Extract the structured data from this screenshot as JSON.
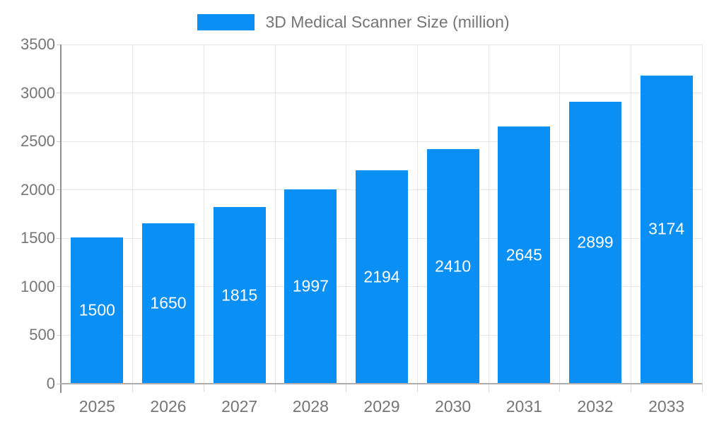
{
  "legend": {
    "label": "3D Medical Scanner Size (million)"
  },
  "colors": {
    "bar": "#0a8ff5",
    "grid": "#e6e6e6",
    "y_axis": "#909090",
    "x_axis": "#aeaeae",
    "axis_text": "#757575",
    "bar_label": "#ffffff",
    "background": "#ffffff"
  },
  "chart_data": {
    "type": "bar",
    "title": "3D Medical Scanner Size (million)",
    "series": [
      {
        "name": "3D Medical Scanner Size (million)",
        "values": [
          1500,
          1650,
          1815,
          1997,
          2194,
          2410,
          2645,
          2899,
          3174
        ]
      }
    ],
    "categories": [
      "2025",
      "2026",
      "2027",
      "2028",
      "2029",
      "2030",
      "2031",
      "2032",
      "2033"
    ],
    "bar_labels": [
      "1500",
      "1650",
      "1815",
      "1997",
      "2194",
      "2410",
      "2645",
      "2899",
      "3174"
    ],
    "xlabel": "",
    "ylabel": "",
    "ylim": [
      0,
      3500
    ],
    "yticks": [
      0,
      500,
      1000,
      1500,
      2000,
      2500,
      3000,
      3500
    ],
    "grid": true,
    "legend_position": "top-center",
    "bar_label_position": "center"
  }
}
